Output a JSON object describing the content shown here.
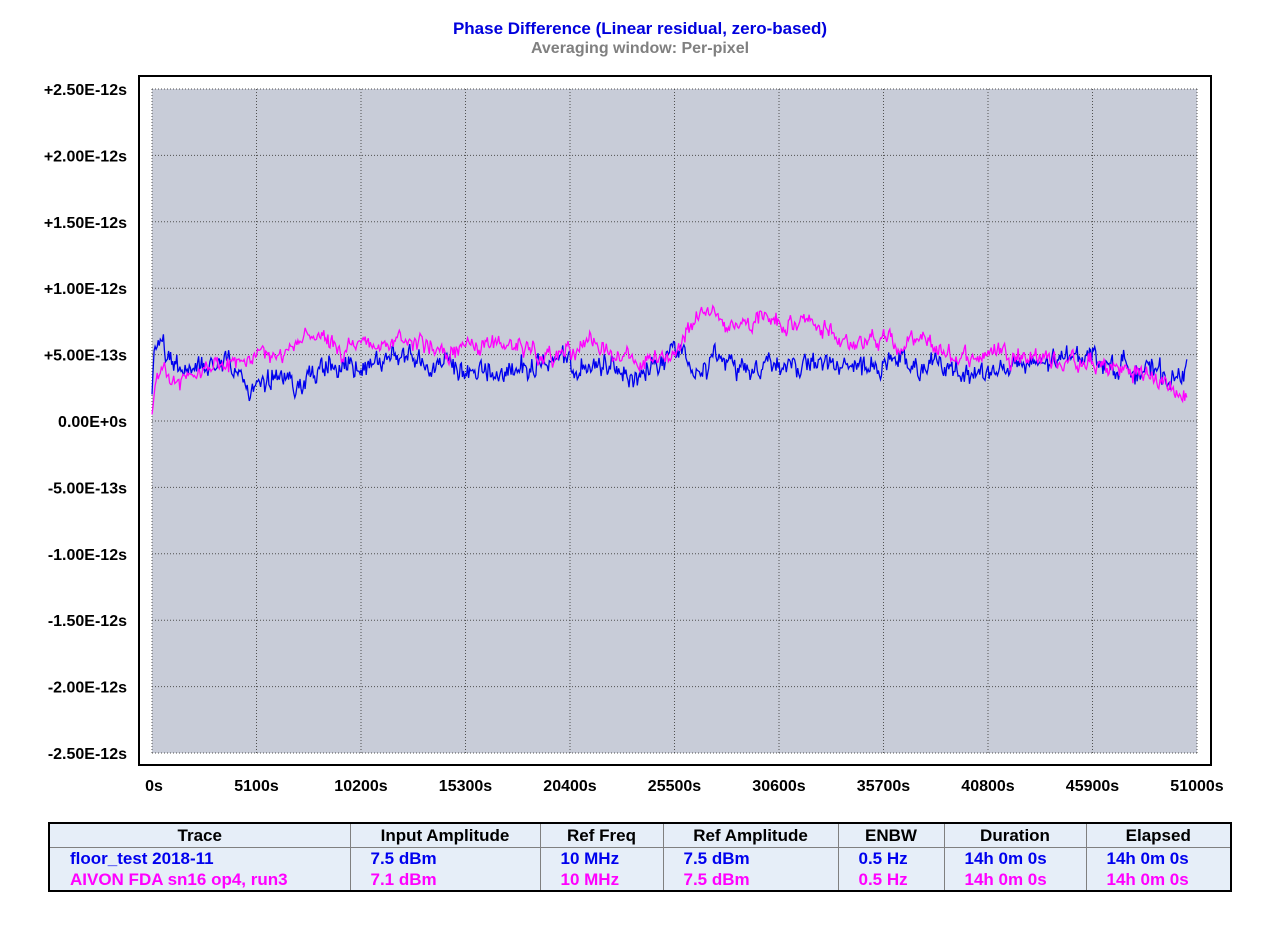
{
  "chart_data": {
    "type": "line",
    "title": "Phase Difference (Linear residual, zero-based)",
    "subtitle": "Averaging window: Per-pixel",
    "xlim": [
      0,
      51000
    ],
    "ylim": [
      -2.5e-12,
      2.5e-12
    ],
    "grid": true,
    "x_ticks": [
      0,
      5100,
      10200,
      15300,
      20400,
      25500,
      30600,
      35700,
      40800,
      45900,
      51000
    ],
    "x_tick_labels": [
      "0s",
      "5100s",
      "10200s",
      "15300s",
      "20400s",
      "25500s",
      "30600s",
      "35700s",
      "40800s",
      "45900s",
      "51000s"
    ],
    "y_ticks": [
      2.5e-12,
      2e-12,
      1.5e-12,
      1e-12,
      5e-13,
      0,
      -5e-13,
      -1e-12,
      -1.5e-12,
      -2e-12,
      -2.5e-12
    ],
    "y_tick_labels": [
      "+2.50E-12s",
      "+2.00E-12s",
      "+1.50E-12s",
      "+1.00E-12s",
      "+5.00E-13s",
      "0.00E+0s",
      "-5.00E-13s",
      "-1.00E-12s",
      "-1.50E-12s",
      "-2.00E-12s",
      "-2.50E-12s"
    ],
    "y_zero_label_color": "#0000dd",
    "series": [
      {
        "name": "floor_test 2018-11",
        "color": "#0000ee",
        "x": [
          0,
          150,
          400,
          800,
          1500,
          2500,
          3500,
          4200,
          4800,
          5500,
          6500,
          7500,
          8500,
          9500,
          10500,
          11500,
          12500,
          13500,
          14300,
          15000,
          16000,
          17000,
          18000,
          18500,
          19500,
          20400,
          21500,
          22500,
          23500,
          24500,
          25300,
          25800,
          26500,
          27000,
          27500,
          28500,
          29500,
          30600,
          31500,
          32500,
          33500,
          34500,
          35700,
          36500,
          37500,
          38500,
          39500,
          40200,
          40800,
          41800,
          42800,
          43800,
          44800,
          45300,
          46000,
          47000,
          48000,
          49000,
          50000,
          50500
        ],
        "y": [
          2e-13,
          5.5e-13,
          6e-13,
          4.5e-13,
          4e-13,
          4.2e-13,
          5e-13,
          3.8e-13,
          2.2e-13,
          2.8e-13,
          3e-13,
          3.2e-13,
          4e-13,
          3.8e-13,
          4.2e-13,
          4.5e-13,
          5.2e-13,
          4e-13,
          4.2e-13,
          3e-13,
          3.8e-13,
          3.5e-13,
          4e-13,
          4.2e-13,
          4.5e-13,
          4e-13,
          3.8e-13,
          4.2e-13,
          3.5e-13,
          4e-13,
          5e-13,
          5.8e-13,
          4.5e-13,
          4e-13,
          4.8e-13,
          3.8e-13,
          4.2e-13,
          4.5e-13,
          4.2e-13,
          4.4e-13,
          3.8e-13,
          4.2e-13,
          4e-13,
          4.5e-13,
          3.8e-13,
          4.2e-13,
          3.6e-13,
          4e-13,
          3.5e-13,
          4.2e-13,
          4e-13,
          4.4e-13,
          4.6e-13,
          5.5e-13,
          4.8e-13,
          4e-13,
          4.2e-13,
          3.5e-13,
          3.3e-13,
          4e-13
        ],
        "input_amplitude": "7.5 dBm",
        "ref_freq": "10 MHz",
        "ref_amplitude": "7.5 dBm",
        "enbw": "0.5 Hz",
        "duration": "14h 0m 0s",
        "elapsed": "14h 0m 0s"
      },
      {
        "name": "AIVON FDA sn16 op4, run3",
        "color": "#ff00ff",
        "x": [
          0,
          150,
          500,
          1000,
          2000,
          3000,
          4000,
          5000,
          6000,
          7000,
          7800,
          8500,
          9500,
          10500,
          11500,
          12500,
          13500,
          14500,
          15500,
          16500,
          17500,
          18500,
          19500,
          20400,
          21500,
          22500,
          23500,
          24500,
          25500,
          26200,
          26800,
          27500,
          28500,
          29500,
          30000,
          30600,
          31500,
          32500,
          33500,
          34500,
          35700,
          36500,
          37500,
          38500,
          39500,
          40500,
          41500,
          42500,
          43500,
          44500,
          45500,
          46500,
          47500,
          48500,
          49500,
          50000,
          50500
        ],
        "y": [
          5e-14,
          2.5e-13,
          3.5e-13,
          3e-13,
          3.5e-13,
          4e-13,
          4.5e-13,
          4.8e-13,
          5e-13,
          5.5e-13,
          7e-13,
          5.5e-13,
          5e-13,
          6e-13,
          5.5e-13,
          5.8e-13,
          6e-13,
          5.2e-13,
          5.5e-13,
          6e-13,
          5.8e-13,
          5.5e-13,
          5e-13,
          5.5e-13,
          5.5e-13,
          5e-13,
          4.5e-13,
          4.2e-13,
          5e-13,
          7.5e-13,
          8.5e-13,
          8e-13,
          7.2e-13,
          8e-13,
          8.2e-13,
          7.2e-13,
          7.5e-13,
          7e-13,
          6.5e-13,
          6e-13,
          6.2e-13,
          5.5e-13,
          6e-13,
          5.2e-13,
          4.8e-13,
          5e-13,
          5.5e-13,
          5e-13,
          4.8e-13,
          4.5e-13,
          4.2e-13,
          4e-13,
          3.8e-13,
          3.5e-13,
          2.8e-13,
          2.2e-13,
          1.5e-13
        ],
        "input_amplitude": "7.1 dBm",
        "ref_freq": "10 MHz",
        "ref_amplitude": "7.5 dBm",
        "enbw": "0.5 Hz",
        "duration": "14h 0m 0s",
        "elapsed": "14h 0m 0s"
      }
    ]
  },
  "legend_table": {
    "headers": [
      "Trace",
      "Input Amplitude",
      "Ref Freq",
      "Ref Amplitude",
      "ENBW",
      "Duration",
      "Elapsed"
    ]
  },
  "colors": {
    "plot_background": "#c8ccd8",
    "grid": "#505050",
    "title": "#0000dd",
    "subtitle": "#808080",
    "legend_background": "#e6eef8"
  }
}
